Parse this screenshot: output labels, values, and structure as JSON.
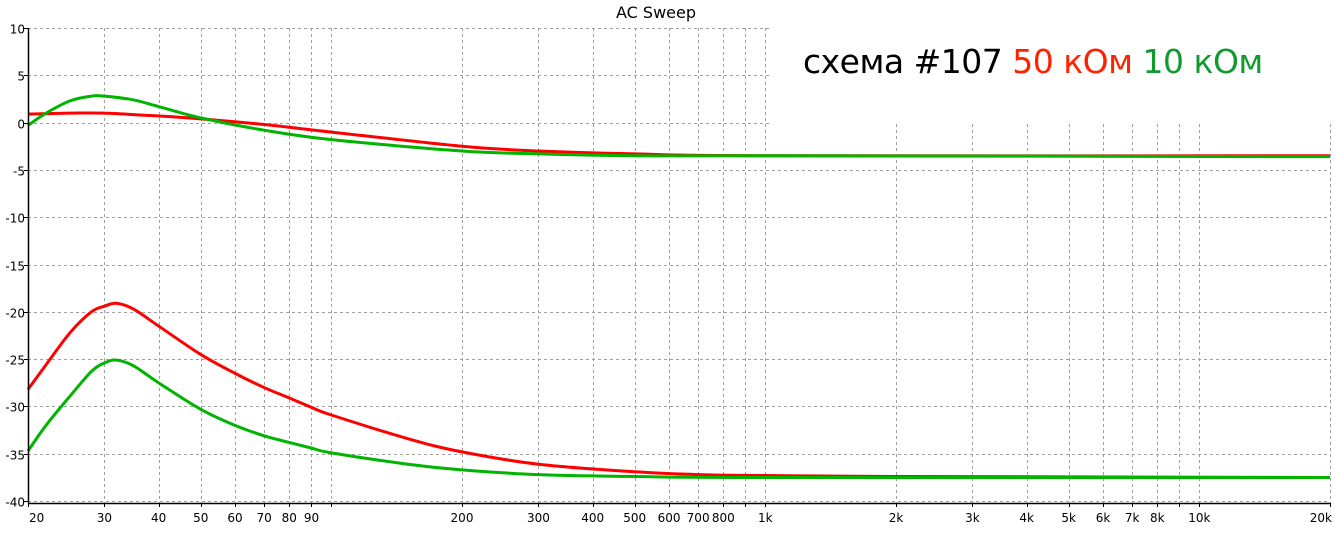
{
  "chart_data": {
    "type": "line",
    "title": "AC Sweep",
    "xlabel": "",
    "ylabel": "",
    "xscale": "log",
    "xlim": [
      20,
      20000
    ],
    "ylim": [
      -40.2,
      10
    ],
    "grid": true,
    "yticks": [
      10,
      5,
      0,
      -5,
      -10,
      -15,
      -20,
      -25,
      -30,
      -35,
      -40
    ],
    "ytick_labels": [
      "10",
      "5",
      "0",
      "-5",
      "-10",
      "-15",
      "-20",
      "-25",
      "-30",
      "-35",
      "-40"
    ],
    "xgrid": [
      20,
      30,
      40,
      50,
      60,
      70,
      80,
      90,
      100,
      200,
      300,
      400,
      500,
      600,
      700,
      800,
      900,
      1000,
      2000,
      3000,
      4000,
      5000,
      6000,
      7000,
      8000,
      9000,
      10000,
      20000
    ],
    "xticks": [
      {
        "v": 20,
        "label": "20"
      },
      {
        "v": 30,
        "label": "30"
      },
      {
        "v": 40,
        "label": "40"
      },
      {
        "v": 50,
        "label": "50"
      },
      {
        "v": 60,
        "label": "60"
      },
      {
        "v": 70,
        "label": "70"
      },
      {
        "v": 80,
        "label": "80"
      },
      {
        "v": 90,
        "label": "90"
      },
      {
        "v": 200,
        "label": "200"
      },
      {
        "v": 300,
        "label": "300"
      },
      {
        "v": 400,
        "label": "400"
      },
      {
        "v": 500,
        "label": "500"
      },
      {
        "v": 600,
        "label": "600"
      },
      {
        "v": 700,
        "label": "700"
      },
      {
        "v": 800,
        "label": "800"
      },
      {
        "v": 1000,
        "label": "1k"
      },
      {
        "v": 2000,
        "label": "2k"
      },
      {
        "v": 3000,
        "label": "3k"
      },
      {
        "v": 4000,
        "label": "4k"
      },
      {
        "v": 5000,
        "label": "5k"
      },
      {
        "v": 6000,
        "label": "6k"
      },
      {
        "v": 7000,
        "label": "7k"
      },
      {
        "v": 8000,
        "label": "8k"
      },
      {
        "v": 10000,
        "label": "10k"
      },
      {
        "v": 20000,
        "label": "20k"
      }
    ],
    "series": [
      {
        "color": "#ff0000",
        "x": [
          20,
          25,
          30,
          40,
          50,
          70,
          100,
          200,
          300,
          500,
          1000,
          20000
        ],
        "y": [
          0.9,
          1.0,
          1.0,
          0.7,
          0.4,
          -0.2,
          -1.0,
          -2.5,
          -3.0,
          -3.3,
          -3.5,
          -3.5
        ]
      },
      {
        "color": "#00b400",
        "x": [
          20,
          22,
          25,
          28,
          30,
          35,
          40,
          50,
          70,
          100,
          200,
          300,
          500,
          1000,
          20000
        ],
        "y": [
          -0.3,
          1.0,
          2.3,
          2.8,
          2.8,
          2.4,
          1.7,
          0.5,
          -0.8,
          -1.8,
          -3.0,
          -3.3,
          -3.5,
          -3.5,
          -3.6
        ]
      },
      {
        "color": "#ff0000",
        "x": [
          20,
          22,
          25,
          28,
          30,
          32,
          35,
          40,
          50,
          60,
          70,
          80,
          90,
          100,
          150,
          200,
          300,
          500,
          700,
          1000,
          2000,
          20000
        ],
        "y": [
          -28.2,
          -25.6,
          -22.2,
          -20.0,
          -19.4,
          -19.1,
          -19.7,
          -21.5,
          -24.5,
          -26.5,
          -28.0,
          -29.1,
          -30.1,
          -30.9,
          -33.4,
          -34.8,
          -36.1,
          -36.9,
          -37.2,
          -37.3,
          -37.4,
          -37.5
        ]
      },
      {
        "color": "#00b400",
        "x": [
          20,
          22,
          25,
          28,
          30,
          32,
          35,
          40,
          50,
          60,
          70,
          80,
          90,
          100,
          150,
          200,
          300,
          500,
          1000,
          20000
        ],
        "y": [
          -34.7,
          -32.0,
          -28.9,
          -26.3,
          -25.4,
          -25.1,
          -25.7,
          -27.5,
          -30.3,
          -32.0,
          -33.1,
          -33.8,
          -34.4,
          -34.9,
          -36.1,
          -36.7,
          -37.2,
          -37.4,
          -37.5,
          -37.5
        ]
      }
    ]
  },
  "annotation": {
    "prefix": "схема #107",
    "prefix_color": "#000000",
    "red_label": "50 кОм",
    "red_color": "#ff2200",
    "green_label": "10 кОм",
    "green_color": "#109a30"
  }
}
